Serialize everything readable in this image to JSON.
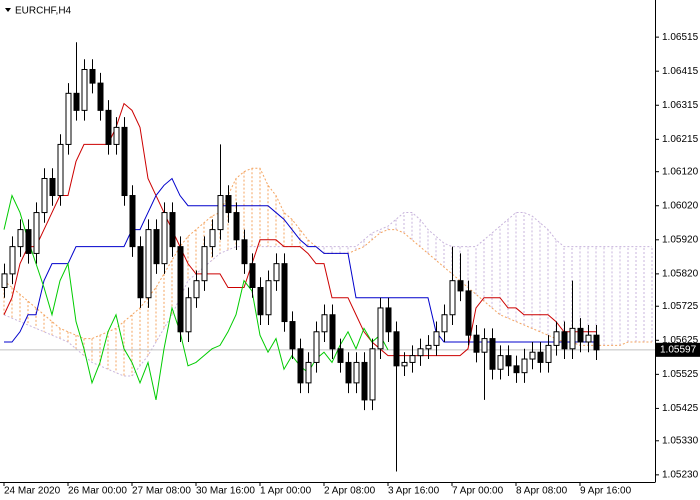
{
  "chart_data": {
    "type": "candlestick",
    "title": "EURCHF,H4",
    "categories": [
      "24 Mar 2020",
      null,
      null,
      null,
      null,
      null,
      null,
      null,
      "26 Mar 00:00",
      null,
      null,
      null,
      null,
      null,
      null,
      null,
      "27 Mar 08:00",
      null,
      null,
      null,
      null,
      null,
      null,
      null,
      "30 Mar 16:00",
      null,
      null,
      null,
      null,
      null,
      null,
      null,
      "1 Apr 00:00",
      null,
      null,
      null,
      null,
      null,
      null,
      null,
      "2 Apr 08:00",
      null,
      null,
      null,
      null,
      null,
      null,
      null,
      "3 Apr 16:00",
      null,
      null,
      null,
      null,
      null,
      null,
      null,
      "7 Apr 00:00",
      null,
      null,
      null,
      null,
      null,
      null,
      null,
      "8 Apr 08:00",
      null,
      null,
      null,
      null,
      null,
      null,
      null,
      "9 Apr 16:00",
      null,
      null,
      null,
      null,
      null,
      null,
      null,
      null,
      null
    ],
    "open": [
      1.0578,
      1.0582,
      1.059,
      1.0595,
      1.0588,
      1.06,
      1.061,
      1.0605,
      1.062,
      1.0635,
      1.063,
      1.0642,
      1.0638,
      1.063,
      1.062,
      1.0625,
      1.0605,
      1.059,
      1.0575,
      1.0595,
      1.0585,
      1.06,
      1.059,
      1.0565,
      1.0575,
      1.058,
      1.059,
      1.0595,
      1.0605,
      1.06,
      1.0592,
      1.0585,
      1.0578,
      1.057,
      1.058,
      1.0585,
      1.0568,
      1.056,
      1.055,
      1.0556,
      1.0565,
      1.057,
      1.056,
      1.0556,
      1.055,
      1.0556,
      1.0545,
      1.056,
      1.0572,
      1.0565,
      1.0555,
      1.0556,
      1.0558,
      1.056,
      1.0561,
      1.0565,
      1.057,
      1.058,
      1.0577,
      1.0564,
      1.0559,
      1.0563,
      1.0554,
      1.0558,
      1.0555,
      1.0553,
      1.0557,
      1.0559,
      1.0556,
      1.0561,
      1.0565,
      1.056,
      1.0566,
      1.0562,
      1.0564,
      null,
      null,
      null,
      null,
      null,
      null,
      null
    ],
    "high": [
      1.0585,
      1.0593,
      1.0598,
      1.0598,
      1.0603,
      1.0613,
      1.0613,
      1.0623,
      1.0638,
      1.065,
      1.0645,
      1.0645,
      1.0641,
      1.0633,
      1.0628,
      1.0628,
      1.0608,
      1.0593,
      1.0598,
      1.0598,
      1.0603,
      1.0603,
      1.0593,
      1.0578,
      1.0583,
      1.0593,
      1.0598,
      1.062,
      1.0608,
      1.0603,
      1.0595,
      1.0588,
      1.0581,
      1.0583,
      1.0588,
      1.0588,
      1.0571,
      1.0563,
      1.0559,
      1.0568,
      1.0573,
      1.0573,
      1.0563,
      1.0559,
      1.0559,
      1.0559,
      1.0563,
      1.0575,
      1.0575,
      1.0568,
      1.0559,
      1.0561,
      1.0563,
      1.0564,
      1.0568,
      1.0573,
      1.059,
      1.0588,
      1.058,
      1.0567,
      1.0566,
      1.0566,
      1.0561,
      1.0561,
      1.0558,
      1.056,
      1.0562,
      1.0562,
      1.0564,
      1.0568,
      1.0568,
      1.058,
      1.0569,
      1.0567,
      1.0567,
      null,
      null,
      null,
      null,
      null,
      null,
      null
    ],
    "low": [
      1.0575,
      1.0579,
      1.0587,
      1.0585,
      1.0585,
      1.0597,
      1.0602,
      1.0602,
      1.0617,
      1.0627,
      1.0627,
      1.0635,
      1.0627,
      1.0617,
      1.0617,
      1.0602,
      1.0587,
      1.0572,
      1.0572,
      1.0582,
      1.0582,
      1.0587,
      1.0562,
      1.0562,
      1.0572,
      1.0577,
      1.0587,
      1.0592,
      1.0597,
      1.0589,
      1.0582,
      1.0575,
      1.0567,
      1.0567,
      1.0577,
      1.0565,
      1.0557,
      1.0547,
      1.0547,
      1.0553,
      1.0562,
      1.0557,
      1.0553,
      1.0547,
      1.0547,
      1.0542,
      1.0542,
      1.0557,
      1.0562,
      1.0524,
      1.0552,
      1.0553,
      1.0555,
      1.0557,
      1.0558,
      1.0562,
      1.0567,
      1.0574,
      1.0561,
      1.0556,
      1.0545,
      1.0551,
      1.0551,
      1.0552,
      1.055,
      1.055,
      1.0554,
      1.0553,
      1.0553,
      1.0558,
      1.0557,
      1.0557,
      1.0559,
      1.0559,
      1.05567,
      null,
      null,
      null,
      null,
      null,
      null,
      null
    ],
    "close": [
      1.0582,
      1.059,
      1.0595,
      1.0588,
      1.06,
      1.061,
      1.0605,
      1.062,
      1.0635,
      1.063,
      1.0642,
      1.0638,
      1.063,
      1.062,
      1.0625,
      1.0605,
      1.059,
      1.0575,
      1.0595,
      1.0585,
      1.06,
      1.059,
      1.0565,
      1.0575,
      1.058,
      1.059,
      1.0595,
      1.0605,
      1.06,
      1.0592,
      1.0585,
      1.0578,
      1.057,
      1.058,
      1.0585,
      1.0568,
      1.056,
      1.055,
      1.0556,
      1.0565,
      1.057,
      1.056,
      1.0556,
      1.055,
      1.0556,
      1.0545,
      1.056,
      1.0572,
      1.0565,
      1.0555,
      1.0556,
      1.0558,
      1.056,
      1.0561,
      1.0565,
      1.057,
      1.058,
      1.0577,
      1.0564,
      1.0559,
      1.0563,
      1.0554,
      1.0558,
      1.0555,
      1.0553,
      1.0557,
      1.0559,
      1.0556,
      1.0561,
      1.0565,
      1.056,
      1.0566,
      1.0562,
      1.0564,
      1.05597,
      null,
      null,
      null,
      null,
      null,
      null,
      null
    ],
    "up_color": "#ffffff",
    "down_color": "#000000",
    "outline_color": "#000000",
    "overlays": [
      {
        "color": "#cc0000",
        "values": [
          1.057,
          1.0575,
          1.0585,
          1.059,
          1.059,
          1.0595,
          1.06,
          1.0605,
          1.0605,
          1.0615,
          1.062,
          1.062,
          1.062,
          1.062,
          1.0625,
          1.0632,
          1.063,
          1.0625,
          1.061,
          1.0605,
          1.06,
          1.0595,
          1.059,
          1.0585,
          1.0582,
          1.0582,
          1.0582,
          1.0582,
          1.0578,
          1.0578,
          1.0578,
          1.0585,
          1.0592,
          1.0592,
          1.0592,
          1.059,
          1.059,
          1.059,
          1.0588,
          1.0585,
          1.0585,
          1.0575,
          1.0575,
          1.0575,
          1.057,
          1.0565,
          1.0562,
          1.056,
          1.0558,
          1.0558,
          1.0558,
          1.0558,
          1.0558,
          1.0558,
          1.0558,
          1.0558,
          1.0558,
          1.0558,
          1.056,
          1.0572,
          1.0575,
          1.0575,
          1.0575,
          1.0572,
          1.0572,
          1.057,
          1.057,
          1.057,
          1.057,
          1.0568,
          1.0565,
          1.0565,
          1.0565,
          1.0565,
          1.0565,
          null,
          null,
          null,
          null,
          null,
          null,
          null
        ]
      },
      {
        "color": "#0000cc",
        "values": [
          1.0562,
          1.0562,
          1.0565,
          1.057,
          1.057,
          1.058,
          1.0585,
          1.0585,
          1.0585,
          1.059,
          1.059,
          1.059,
          1.059,
          1.059,
          1.059,
          1.059,
          1.0595,
          1.0595,
          1.06,
          1.0605,
          1.0608,
          1.061,
          1.0605,
          1.0602,
          1.0602,
          1.0602,
          1.0602,
          1.0602,
          1.0602,
          1.0602,
          1.0602,
          1.0602,
          1.0602,
          1.0602,
          1.06,
          1.0598,
          1.0595,
          1.0592,
          1.059,
          1.059,
          1.0588,
          1.0588,
          1.0588,
          1.0588,
          1.0575,
          1.0575,
          1.0575,
          1.0575,
          1.0575,
          1.0575,
          1.0575,
          1.0575,
          1.0575,
          1.0575,
          1.0565,
          1.0562,
          1.0562,
          1.0562,
          1.0562,
          1.0562,
          1.0562,
          1.0562,
          1.0562,
          1.0562,
          1.0562,
          1.0562,
          1.0562,
          1.0562,
          1.0562,
          1.0562,
          1.0562,
          1.0562,
          1.0562,
          1.0562,
          1.0562,
          null,
          null,
          null,
          null,
          null,
          null,
          null
        ]
      },
      {
        "color": "#00cc00",
        "values": [
          1.0595,
          1.0605,
          1.06,
          1.0592,
          1.0585,
          1.0578,
          1.057,
          1.058,
          1.0585,
          1.0568,
          1.056,
          1.055,
          1.0556,
          1.0565,
          1.057,
          1.056,
          1.0556,
          1.055,
          1.0556,
          1.0545,
          1.056,
          1.0572,
          1.0565,
          1.0555,
          1.0556,
          1.0558,
          1.056,
          1.0561,
          1.0565,
          1.057,
          1.058,
          1.0577,
          1.0564,
          1.0559,
          1.0563,
          1.0554,
          1.0558,
          1.0555,
          1.0553,
          1.0557,
          1.0559,
          1.0556,
          1.0561,
          1.0565,
          1.056,
          1.0566,
          1.0562,
          1.0564,
          1.05597,
          null,
          null,
          null,
          null,
          null,
          null,
          null,
          null,
          null,
          null,
          null,
          null,
          null,
          null,
          null,
          null,
          null,
          null,
          null,
          null,
          null,
          null,
          null,
          null,
          null,
          null,
          null,
          null,
          null,
          null,
          null,
          null,
          null
        ]
      }
    ],
    "cloud": {
      "up_color": "#f4a460",
      "down_color": "#c8b4dc",
      "span_a": [
        1.058,
        1.0578,
        1.0576,
        1.0574,
        1.0572,
        1.057,
        1.0568,
        1.0566,
        1.0565,
        1.0564,
        1.0563,
        1.0563,
        1.0564,
        1.0565,
        1.0566,
        1.0568,
        1.057,
        1.0572,
        1.0575,
        1.0578,
        1.0582,
        1.0586,
        1.059,
        1.0593,
        1.0595,
        1.0597,
        1.0599,
        1.06,
        1.0605,
        1.061,
        1.0612,
        1.0613,
        1.0613,
        1.0608,
        1.0605,
        1.06,
        1.0598,
        1.0595,
        1.0592,
        1.059,
        1.0588,
        1.0588,
        1.0588,
        1.0588,
        1.0589,
        1.059,
        1.0592,
        1.0594,
        1.0595,
        1.0595,
        1.0594,
        1.0592,
        1.059,
        1.0588,
        1.0586,
        1.0584,
        1.0582,
        1.058,
        1.0578,
        1.0576,
        1.0574,
        1.0572,
        1.057,
        1.0569,
        1.0568,
        1.0567,
        1.0566,
        1.0565,
        1.0564,
        1.0563,
        1.0562,
        1.0562,
        1.0561,
        1.0561,
        1.0561,
        1.0561,
        1.0561,
        1.0561,
        1.0562,
        1.0562,
        1.0562,
        1.0562
      ],
      "span_b": [
        1.057,
        1.0569,
        1.0568,
        1.0567,
        1.0566,
        1.0565,
        1.0564,
        1.0563,
        1.0562,
        1.056,
        1.0558,
        1.0556,
        1.0555,
        1.0554,
        1.0553,
        1.0552,
        1.0552,
        1.0555,
        1.0558,
        1.0562,
        1.0566,
        1.057,
        1.0575,
        1.058,
        1.0582,
        1.0584,
        1.0586,
        1.0588,
        1.0589,
        1.059,
        1.059,
        1.059,
        1.059,
        1.059,
        1.059,
        1.059,
        1.059,
        1.059,
        1.059,
        1.059,
        1.059,
        1.059,
        1.059,
        1.059,
        1.059,
        1.0592,
        1.0594,
        1.0595,
        1.0596,
        1.0598,
        1.06,
        1.06,
        1.0598,
        1.0595,
        1.0593,
        1.0591,
        1.059,
        1.059,
        1.059,
        1.059,
        1.0592,
        1.0594,
        1.0596,
        1.0598,
        1.06,
        1.06,
        1.0599,
        1.0597,
        1.0595,
        1.0592,
        1.059,
        1.059,
        1.059,
        1.059,
        1.059,
        1.059,
        1.059,
        1.059,
        1.059,
        1.059,
        1.059,
        1.059
      ]
    },
    "last_price": 1.05597,
    "last_price_line_color": "#c0c0c0",
    "ylim": [
      1.05209,
      1.06624
    ],
    "yticks": [
      1.06515,
      1.06415,
      1.06315,
      1.06215,
      {
        "value": 1.0612,
        "label": "1.06120"
      },
      {
        "value": 1.0602,
        "label": "1.06020"
      },
      {
        "value": 1.0592,
        "label": "1.05920"
      },
      {
        "value": 1.0582,
        "label": "1.05820"
      },
      1.05725,
      1.05625,
      1.05525,
      1.05425,
      {
        "value": 1.0533,
        "label": "1.05330"
      },
      {
        "value": 1.0523,
        "label": "1.05230"
      }
    ],
    "grid": false
  }
}
